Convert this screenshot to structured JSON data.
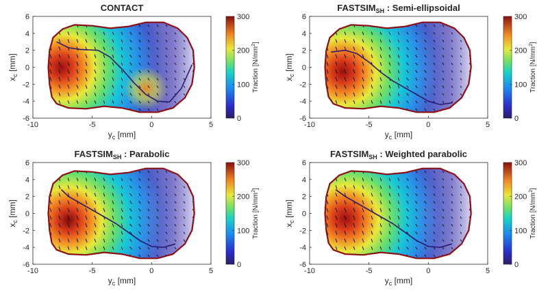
{
  "chart_data": [
    {
      "type": "heatmap",
      "title": "CONTACT",
      "title_sub": "",
      "title_suffix": "",
      "xlabel": "y",
      "xlabel_sub": "c",
      "xlabel_unit": " [mm]",
      "ylabel": "x",
      "ylabel_sub": "c",
      "ylabel_unit": " [mm]",
      "xlim": [
        -10,
        5
      ],
      "ylim": [
        -6,
        6
      ],
      "xticks": [
        "-10",
        "-5",
        "0",
        "5"
      ],
      "yticks": [
        "6",
        "4",
        "2",
        "0",
        "-2",
        "-4",
        "-6"
      ],
      "colorbar": {
        "label": "Traction [N/mm",
        "label_sup": "2",
        "label_end": "]",
        "ticks": [
          "300",
          "200",
          "100",
          "0"
        ],
        "range": [
          0,
          300
        ]
      },
      "peak": {
        "y": -7.6,
        "x": 0,
        "value": 290
      },
      "secondary_peak": {
        "y": -0.5,
        "x": -2.5,
        "value": 230
      },
      "separation_line": [
        [
          -8.0,
          3.0
        ],
        [
          -7.0,
          2.3
        ],
        [
          -6.0,
          2.1
        ],
        [
          -4.5,
          2.0
        ],
        [
          -3.5,
          1.2
        ],
        [
          -2.5,
          -0.2
        ],
        [
          -1.5,
          -1.8
        ],
        [
          -0.5,
          -3.2
        ],
        [
          0.5,
          -4.0
        ],
        [
          1.5,
          -4.1
        ],
        [
          2.5,
          -2.5
        ],
        [
          3.4,
          0.3
        ]
      ]
    },
    {
      "type": "heatmap",
      "title": "FASTSIM",
      "title_sub": "SH",
      "title_suffix": " : Semi-ellipsoidal",
      "xlabel": "y",
      "xlabel_sub": "c",
      "xlabel_unit": " [mm]",
      "ylabel": "x",
      "ylabel_sub": "c",
      "ylabel_unit": " [mm]",
      "xlim": [
        -10,
        5
      ],
      "ylim": [
        -6,
        6
      ],
      "xticks": [
        "-10",
        "-5",
        "0",
        "5"
      ],
      "yticks": [
        "6",
        "4",
        "2",
        "0",
        "-2",
        "-4",
        "-6"
      ],
      "colorbar": {
        "label": "Traction [N/mm",
        "label_sup": "2",
        "label_end": "]",
        "ticks": [
          "300",
          "200",
          "100",
          "0"
        ],
        "range": [
          0,
          300
        ]
      },
      "peak": {
        "y": -7.2,
        "x": -0.5,
        "value": 280
      },
      "separation_line": [
        [
          -8.2,
          1.8
        ],
        [
          -7.0,
          2.0
        ],
        [
          -6.0,
          1.6
        ],
        [
          -5.0,
          0.6
        ],
        [
          -4.0,
          -0.6
        ],
        [
          -3.0,
          -1.6
        ],
        [
          -2.0,
          -2.4
        ],
        [
          -1.0,
          -3.2
        ],
        [
          0.0,
          -4.0
        ],
        [
          1.0,
          -4.4
        ],
        [
          2.0,
          -4.2
        ]
      ]
    },
    {
      "type": "heatmap",
      "title": "FASTSIM",
      "title_sub": "SH",
      "title_suffix": " : Parabolic",
      "xlabel": "y",
      "xlabel_sub": "c",
      "xlabel_unit": " [mm]",
      "ylabel": "x",
      "ylabel_sub": "c",
      "ylabel_unit": " [mm]",
      "xlim": [
        -10,
        5
      ],
      "ylim": [
        -6,
        6
      ],
      "xticks": [
        "-10",
        "-5",
        "0",
        "5"
      ],
      "yticks": [
        "6",
        "4",
        "2",
        "0",
        "-2",
        "-4",
        "-6"
      ],
      "colorbar": {
        "label": "Traction [N/mm",
        "label_sup": "2",
        "label_end": "]",
        "ticks": [
          "300",
          "200",
          "100",
          "0"
        ],
        "range": [
          0,
          300
        ]
      },
      "peak": {
        "y": -7.0,
        "x": -0.8,
        "value": 300
      },
      "separation_line": [
        [
          -7.6,
          2.8
        ],
        [
          -7.0,
          2.0
        ],
        [
          -6.0,
          1.2
        ],
        [
          -5.0,
          0.4
        ],
        [
          -4.0,
          -0.4
        ],
        [
          -3.0,
          -1.2
        ],
        [
          -2.0,
          -2.2
        ],
        [
          -1.0,
          -3.2
        ],
        [
          0.0,
          -3.9
        ],
        [
          1.0,
          -4.0
        ],
        [
          2.0,
          -3.6
        ]
      ]
    },
    {
      "type": "heatmap",
      "title": "FASTSIM",
      "title_sub": "SH",
      "title_suffix": " : Weighted parabolic",
      "xlabel": "y",
      "xlabel_sub": "c",
      "xlabel_unit": " [mm]",
      "ylabel": "x",
      "ylabel_sub": "c",
      "ylabel_unit": " [mm]",
      "xlim": [
        -10,
        5
      ],
      "ylim": [
        -6,
        6
      ],
      "xticks": [
        "-10",
        "-5",
        "0",
        "5"
      ],
      "yticks": [
        "6",
        "4",
        "2",
        "0",
        "-2",
        "-4",
        "-6"
      ],
      "colorbar": {
        "label": "Traction [N/mm",
        "label_sup": "2",
        "label_end": "]",
        "ticks": [
          "300",
          "200",
          "100",
          "0"
        ],
        "range": [
          0,
          300
        ]
      },
      "peak": {
        "y": -7.0,
        "x": -0.6,
        "value": 290
      },
      "separation_line": [
        [
          -7.8,
          2.8
        ],
        [
          -7.0,
          2.0
        ],
        [
          -6.0,
          1.2
        ],
        [
          -5.0,
          0.4
        ],
        [
          -4.0,
          -0.4
        ],
        [
          -3.0,
          -1.2
        ],
        [
          -2.0,
          -2.2
        ],
        [
          -1.0,
          -3.2
        ],
        [
          0.0,
          -3.9
        ],
        [
          1.0,
          -4.0
        ],
        [
          2.0,
          -3.6
        ]
      ]
    }
  ],
  "contact_boundary": [
    [
      -8.4,
      -3.5
    ],
    [
      -8.6,
      -2
    ],
    [
      -8.7,
      0
    ],
    [
      -8.6,
      2
    ],
    [
      -8.3,
      3.5
    ],
    [
      -7.5,
      4.5
    ],
    [
      -6.5,
      5
    ],
    [
      -5,
      4.9
    ],
    [
      -3.5,
      4.6
    ],
    [
      -2,
      4.8
    ],
    [
      -0.5,
      5.3
    ],
    [
      1,
      5.3
    ],
    [
      2.2,
      4.6
    ],
    [
      3,
      3.5
    ],
    [
      3.5,
      2
    ],
    [
      3.6,
      0
    ],
    [
      3.4,
      -2
    ],
    [
      2.8,
      -3.6
    ],
    [
      1.8,
      -4.8
    ],
    [
      0.5,
      -5.3
    ],
    [
      -1,
      -5.3
    ],
    [
      -2.5,
      -4.8
    ],
    [
      -4,
      -4.6
    ],
    [
      -5.5,
      -4.9
    ],
    [
      -7,
      -4.8
    ],
    [
      -8,
      -4.3
    ]
  ],
  "colors": {
    "boundary": "#8b0f14",
    "separation": "#2a1a6e",
    "arrows": "#111111",
    "axis": "#262626"
  }
}
